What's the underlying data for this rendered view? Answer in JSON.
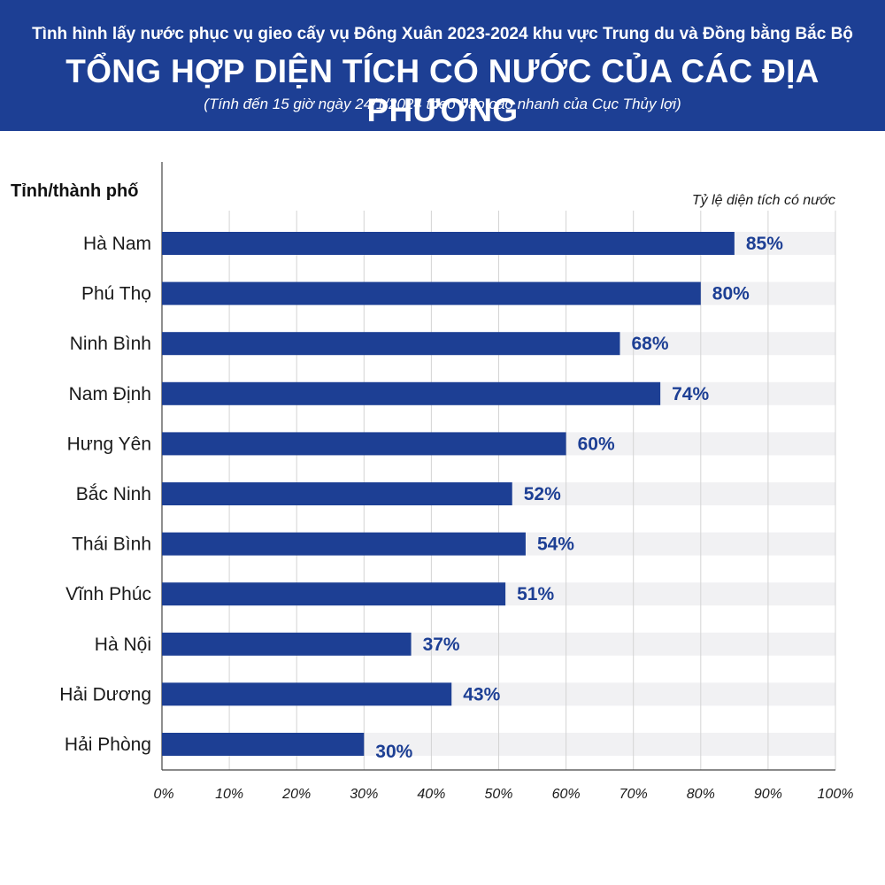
{
  "header": {
    "supertitle": "Tình hình lấy nước phục vụ gieo cấy vụ Đông Xuân 2023-2024 khu vực Trung du và Đồng bằng Bắc Bộ",
    "title": "TỔNG HỢP DIỆN TÍCH CÓ NƯỚC CỦA CÁC ĐỊA PHƯƠNG",
    "subtitle": "(Tính đến 15 giờ ngày 24/1/2024 theo báo cáo nhanh của Cục Thủy lợi)"
  },
  "colors": {
    "header_bg": "#1d3f94",
    "bar": "#1d3f94",
    "track": "#f1f1f3",
    "grid": "#d4d4d4",
    "label": "#1d3f94"
  },
  "chart_data": {
    "type": "bar",
    "orientation": "horizontal",
    "ylabel": "Tỉnh/thành phố",
    "xlabel": "Tỷ lệ diện tích có nước",
    "categories": [
      "Hà Nam",
      "Phú Thọ",
      "Ninh Bình",
      "Nam Định",
      "Hưng Yên",
      "Bắc Ninh",
      "Thái Bình",
      "Vĩnh Phúc",
      "Hà Nội",
      "Hải Dương",
      "Hải Phòng"
    ],
    "values": [
      85,
      80,
      68,
      74,
      60,
      52,
      54,
      51,
      37,
      43,
      30
    ],
    "value_labels": [
      "85%",
      "80%",
      "68%",
      "74%",
      "60%",
      "52%",
      "54%",
      "51%",
      "37%",
      "43%",
      "30%"
    ],
    "xlim": [
      0,
      100
    ],
    "xticks": [
      0,
      10,
      20,
      30,
      40,
      50,
      60,
      70,
      80,
      90,
      100
    ],
    "xtick_labels": [
      "0%",
      "10%",
      "20%",
      "30%",
      "40%",
      "50%",
      "60%",
      "70%",
      "80%",
      "90%",
      "100%"
    ],
    "grid": true
  }
}
